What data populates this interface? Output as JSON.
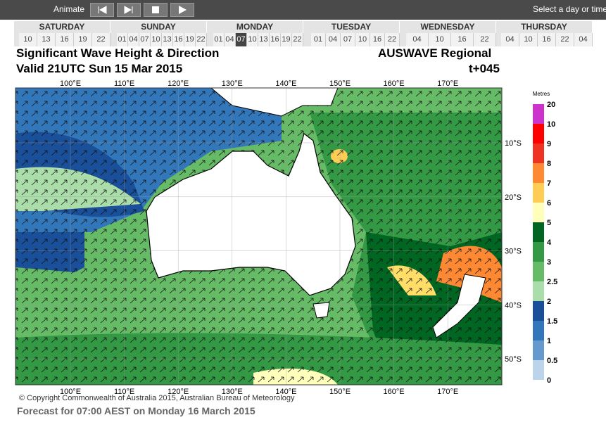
{
  "toolbar": {
    "animate": "Animate",
    "hint": "Select a day or time t"
  },
  "days": [
    {
      "name": "SATURDAY",
      "hours": [
        "10",
        "13",
        "16",
        "19",
        "22"
      ]
    },
    {
      "name": "SUNDAY",
      "hours": [
        "01",
        "04",
        "07",
        "10",
        "13",
        "16",
        "19",
        "22"
      ]
    },
    {
      "name": "MONDAY",
      "hours": [
        "01",
        "04",
        "07",
        "10",
        "13",
        "16",
        "19",
        "22"
      ]
    },
    {
      "name": "TUESDAY",
      "hours": [
        "01",
        "04",
        "07",
        "10",
        "16",
        "22"
      ]
    },
    {
      "name": "WEDNESDAY",
      "hours": [
        "04",
        "10",
        "16",
        "22"
      ]
    },
    {
      "name": "THURSDAY",
      "hours": [
        "04",
        "10",
        "16",
        "22",
        "04"
      ]
    }
  ],
  "selected": "07",
  "header": {
    "title": "Significant Wave Height & Direction",
    "model": "AUSWAVE Regional",
    "valid": "Valid 21UTC Sun 15 Mar 2015",
    "lead": "t+045"
  },
  "map": {
    "lon_labels": [
      "100°E",
      "110°E",
      "120°E",
      "130°E",
      "140°E",
      "150°E",
      "160°E",
      "170°E"
    ],
    "lat_labels": [
      "10°S",
      "20°S",
      "30°S",
      "40°S",
      "50°S"
    ]
  },
  "legend": {
    "title": "Metres",
    "labels": [
      "20",
      "10",
      "9",
      "8",
      "7",
      "6",
      "5",
      "4",
      "3",
      "2.5",
      "2",
      "1.5",
      "1",
      "0.5",
      "0"
    ],
    "colors": [
      "#cc33cc",
      "#ff0000",
      "#ee3322",
      "#ff8833",
      "#ffcc55",
      "#ffffbb",
      "#006622",
      "#339944",
      "#66bb66",
      "#aaddaa",
      "#1a4f9a",
      "#3377bb",
      "#6699cc",
      "#bbd4ea"
    ]
  },
  "footer": {
    "copyright": "© Copyright Commonwealth of Australia 2015, Australian Bureau of Meteorology",
    "forecast": "Forecast for 07:00 AEST on Monday 16 March 2015"
  }
}
